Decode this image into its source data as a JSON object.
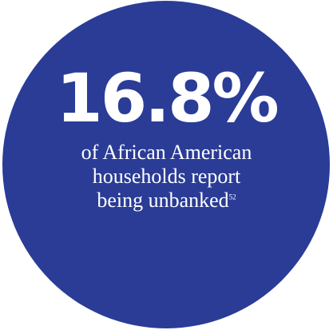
{
  "stat": {
    "value": "16.8%"
  },
  "caption": {
    "line1": "of African American",
    "line2": "households report",
    "line3": "being unbanked",
    "footnote": "52"
  },
  "colors": {
    "circle": "#2a3c96",
    "text": "#ffffff"
  }
}
